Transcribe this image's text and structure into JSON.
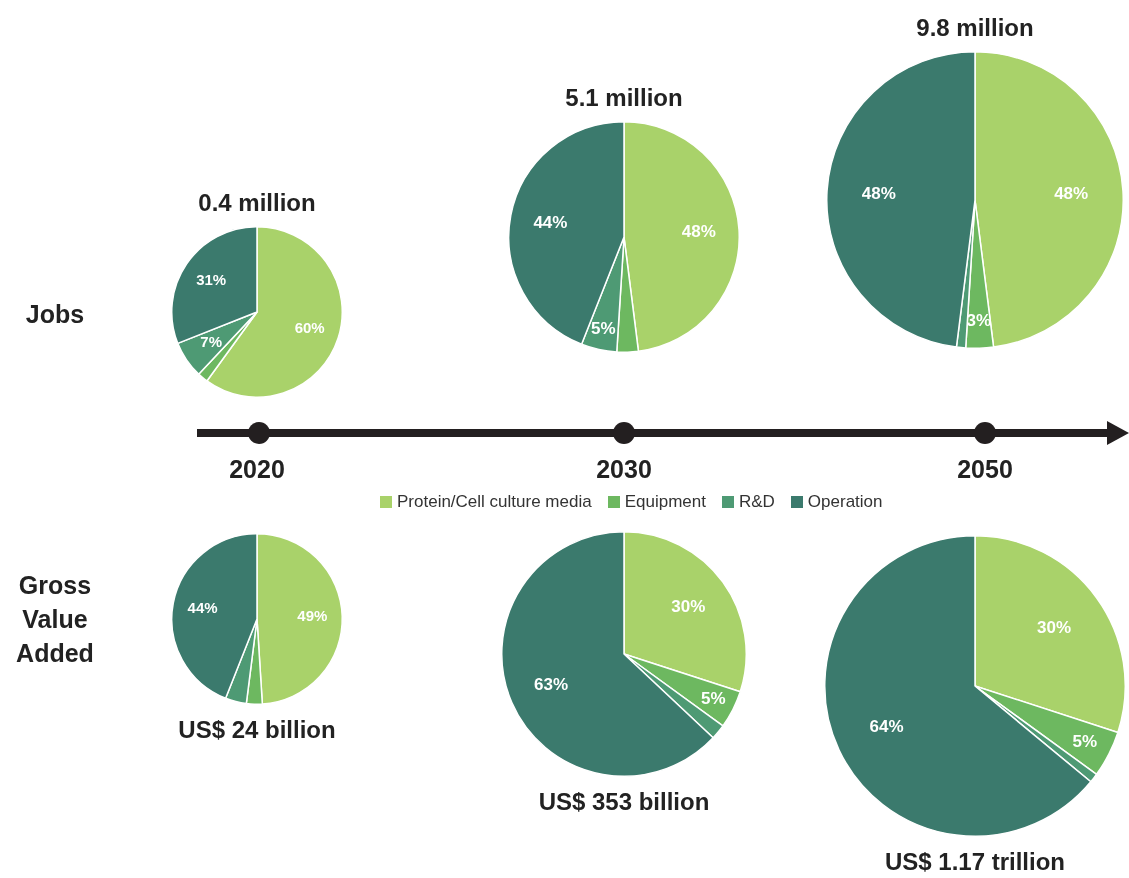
{
  "chart_data": [
    {
      "type": "pie",
      "title": "0.4 million",
      "categories": [
        null,
        null,
        null,
        null
      ],
      "values": [
        60,
        2,
        7,
        31
      ],
      "colors": [
        "#a9d26a",
        "#6db860",
        "#4e9a74",
        "#3b7a6d"
      ],
      "value_labels": [
        "60%",
        null,
        "7%",
        "31%"
      ],
      "annotations": [
        "Jobs",
        "2020"
      ]
    },
    {
      "type": "pie",
      "title": "5.1 million",
      "categories": [
        null,
        null,
        null,
        null
      ],
      "values": [
        48,
        3,
        5,
        44
      ],
      "colors": [
        "#a9d26a",
        "#6db860",
        "#4e9a74",
        "#3b7a6d"
      ],
      "value_labels": [
        "48%",
        null,
        "5%",
        "44%"
      ],
      "annotations": [
        "2030"
      ]
    },
    {
      "type": "pie",
      "title": "9.8 million",
      "categories": [
        null,
        null,
        null,
        null
      ],
      "values": [
        48,
        3,
        1,
        48
      ],
      "colors": [
        "#a9d26a",
        "#6db860",
        "#4e9a74",
        "#3b7a6d"
      ],
      "value_labels": [
        "48%",
        "3%",
        null,
        "48%"
      ],
      "annotations": [
        "2050"
      ]
    },
    {
      "type": "pie",
      "title": "US$ 24 billion",
      "categories": [
        null,
        null,
        null,
        null
      ],
      "values": [
        49,
        3,
        4,
        44
      ],
      "colors": [
        "#a9d26a",
        "#6db860",
        "#4e9a74",
        "#3b7a6d"
      ],
      "value_labels": [
        "49%",
        null,
        null,
        "44%"
      ],
      "annotations": [
        "Gross Value Added"
      ]
    },
    {
      "type": "pie",
      "title": "US$ 353 billion",
      "categories": [
        "Protein/Cell culture media",
        "Equipment",
        "R&D",
        "Operation"
      ],
      "values": [
        30,
        5,
        2,
        63
      ],
      "colors": [
        "#a9d26a",
        "#6db860",
        "#4e9a74",
        "#3b7a6d"
      ],
      "value_labels": [
        "30%",
        "5%",
        null,
        "63%"
      ],
      "legend": "top"
    },
    {
      "type": "pie",
      "title": "US$ 1.17 trillion",
      "categories": [
        null,
        null,
        null,
        null
      ],
      "values": [
        30,
        5,
        1,
        64
      ],
      "colors": [
        "#a9d26a",
        "#6db860",
        "#4e9a74",
        "#3b7a6d"
      ],
      "value_labels": [
        "30%",
        "5%",
        null,
        "64%"
      ]
    }
  ]
}
